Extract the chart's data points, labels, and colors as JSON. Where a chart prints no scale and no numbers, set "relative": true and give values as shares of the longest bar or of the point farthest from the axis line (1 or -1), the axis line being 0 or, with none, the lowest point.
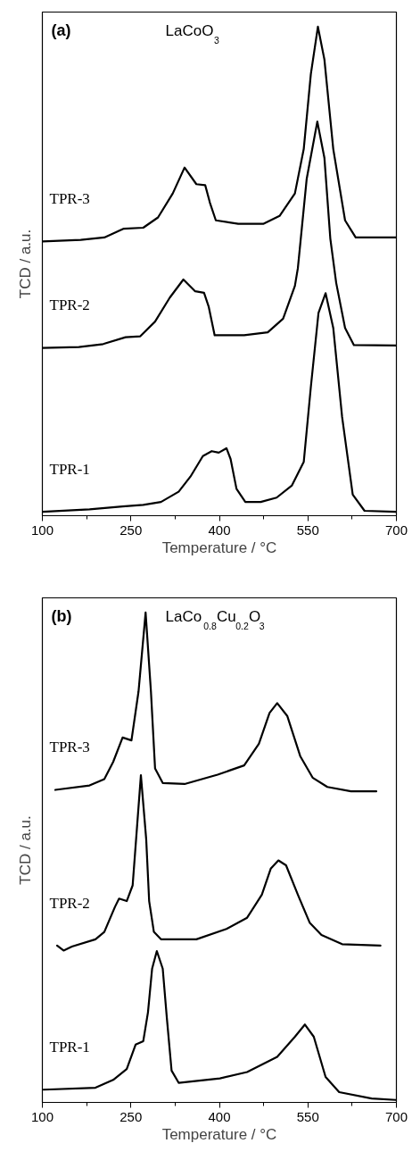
{
  "chart_data": [
    {
      "type": "line",
      "title": "(a)",
      "subtitle": "LaCoO$_{3}$",
      "xlabel": "Temperature / °C",
      "ylabel": "TCD / a.u.",
      "xlim": [
        100,
        700
      ],
      "xticks": [
        100,
        250,
        400,
        550,
        700
      ],
      "relative": true,
      "series": [
        {
          "name": "TPR-3",
          "color": "#000000",
          "x": [
            100,
            165,
            205,
            238,
            271,
            296,
            321,
            341,
            361,
            376,
            384,
            394,
            432,
            475,
            502,
            528,
            543,
            555,
            567,
            578,
            593,
            613,
            631,
            699
          ],
          "values": [
            0.561,
            0.564,
            0.569,
            0.587,
            0.589,
            0.61,
            0.659,
            0.712,
            0.678,
            0.676,
            0.64,
            0.604,
            0.597,
            0.597,
            0.613,
            0.659,
            0.75,
            0.903,
            1.0,
            0.933,
            0.75,
            0.604,
            0.569,
            0.569
          ]
        },
        {
          "name": "TPR-2",
          "color": "#000000",
          "x": [
            100,
            162,
            203,
            241,
            266,
            291,
            316,
            339,
            359,
            374,
            382,
            392,
            442,
            482,
            508,
            528,
            533,
            548,
            566,
            578,
            588,
            598,
            613,
            628,
            699
          ],
          "values": [
            0.343,
            0.345,
            0.351,
            0.365,
            0.367,
            0.397,
            0.446,
            0.483,
            0.459,
            0.456,
            0.427,
            0.369,
            0.369,
            0.375,
            0.403,
            0.47,
            0.506,
            0.689,
            0.806,
            0.732,
            0.567,
            0.476,
            0.384,
            0.349,
            0.348
          ]
        },
        {
          "name": "TPR-1",
          "color": "#000000",
          "x": [
            100,
            180,
            236,
            271,
            301,
            331,
            351,
            372,
            387,
            399,
            412,
            419,
            429,
            444,
            470,
            497,
            523,
            543,
            555,
            568,
            580,
            593,
            608,
            626,
            646,
            699
          ],
          "values": [
            0.008,
            0.013,
            0.019,
            0.022,
            0.028,
            0.049,
            0.08,
            0.122,
            0.132,
            0.129,
            0.138,
            0.116,
            0.055,
            0.028,
            0.028,
            0.037,
            0.062,
            0.11,
            0.263,
            0.415,
            0.455,
            0.384,
            0.202,
            0.043,
            0.01,
            0.008
          ]
        }
      ]
    },
    {
      "type": "line",
      "title": "(b)",
      "subtitle": "LaCo$_{0.8}$Cu$_{0.2}$O$_{3}$",
      "xlabel": "Temperature / °C",
      "ylabel": "TCD / a.u.",
      "xlim": [
        100,
        700
      ],
      "xticks": [
        100,
        250,
        400,
        550,
        700
      ],
      "relative": true,
      "series": [
        {
          "name": "TPR-3",
          "color": "#000000",
          "x": [
            122,
            180,
            205,
            220,
            236,
            251,
            263,
            275,
            284,
            291,
            304,
            341,
            397,
            442,
            467,
            485,
            498,
            515,
            537,
            558,
            583,
            623,
            666
          ],
          "values": [
            0.638,
            0.647,
            0.66,
            0.695,
            0.745,
            0.739,
            0.839,
            1.0,
            0.839,
            0.682,
            0.652,
            0.65,
            0.669,
            0.688,
            0.732,
            0.795,
            0.815,
            0.789,
            0.707,
            0.663,
            0.644,
            0.635,
            0.635
          ]
        },
        {
          "name": "TPR-2",
          "color": "#000000",
          "x": [
            125,
            136,
            150,
            190,
            205,
            223,
            230,
            243,
            253,
            267,
            276,
            281,
            289,
            301,
            361,
            412,
            447,
            472,
            487,
            500,
            513,
            533,
            553,
            573,
            608,
            673
          ],
          "values": [
            0.32,
            0.31,
            0.318,
            0.333,
            0.348,
            0.399,
            0.416,
            0.411,
            0.443,
            0.668,
            0.537,
            0.411,
            0.348,
            0.333,
            0.333,
            0.354,
            0.377,
            0.424,
            0.477,
            0.494,
            0.484,
            0.424,
            0.367,
            0.342,
            0.323,
            0.32
          ]
        },
        {
          "name": "TPR-1",
          "color": "#000000",
          "x": [
            102,
            190,
            220,
            243,
            258,
            271,
            279,
            286,
            294,
            304,
            311,
            319,
            331,
            401,
            447,
            498,
            528,
            545,
            560,
            580,
            603,
            658,
            699
          ],
          "values": [
            0.026,
            0.03,
            0.046,
            0.068,
            0.118,
            0.125,
            0.184,
            0.273,
            0.309,
            0.273,
            0.172,
            0.065,
            0.04,
            0.049,
            0.062,
            0.093,
            0.134,
            0.159,
            0.134,
            0.052,
            0.021,
            0.008,
            0.005
          ]
        }
      ]
    }
  ]
}
